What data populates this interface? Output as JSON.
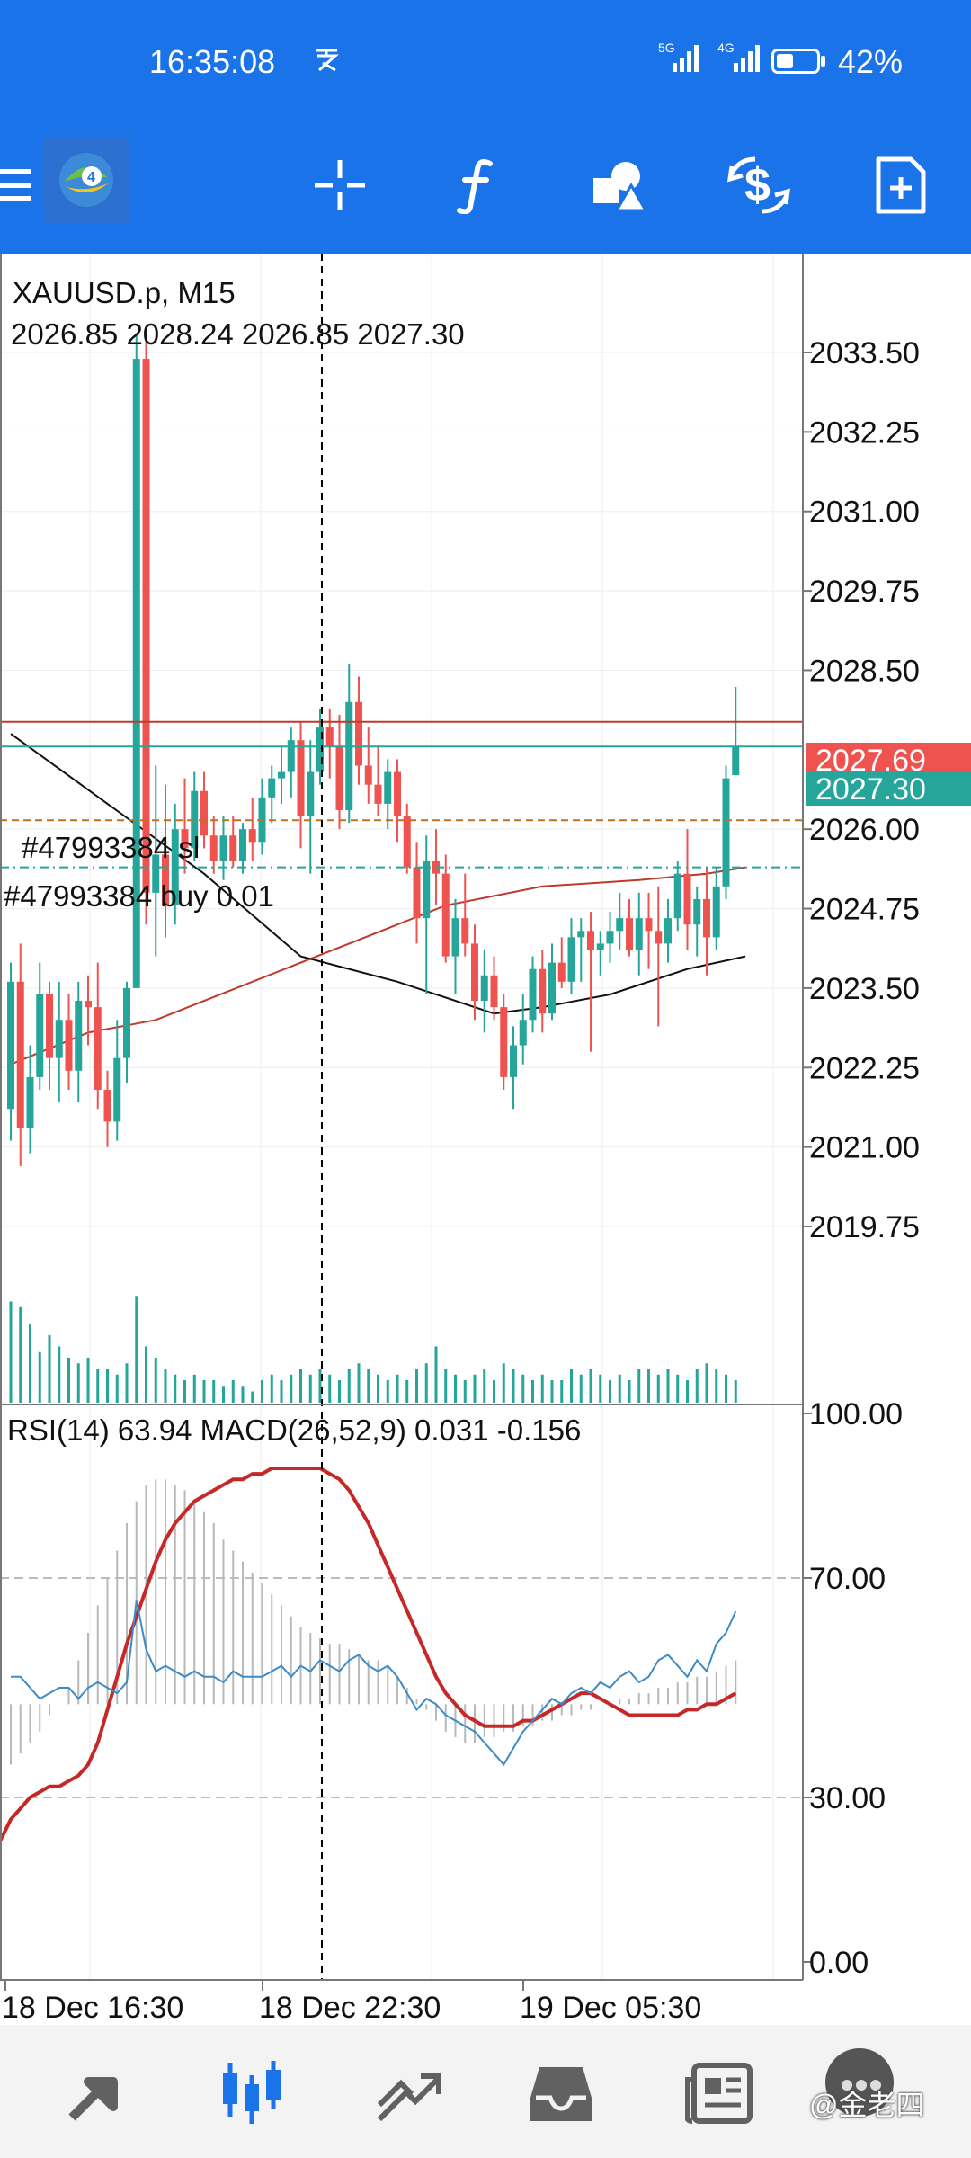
{
  "status_bar": {
    "time": "16:35:08",
    "signal_1": "5G",
    "signal_2": "4G",
    "battery_percent": "42%",
    "battery_level": 0.42
  },
  "toolbar": {
    "icons": [
      "menu-icon",
      "app-logo-icon",
      "crosshair-icon",
      "function-icon",
      "objects-icon",
      "trade-icon",
      "new-order-icon"
    ]
  },
  "chart": {
    "symbol_label": "XAUUSD.p, M15",
    "ohlc_label": "2026.85 2028.24 2026.85 2027.30",
    "y_ticks": [
      "2033.50",
      "2032.25",
      "2031.00",
      "2029.75",
      "2028.50",
      "2026.00",
      "2024.75",
      "2023.50",
      "2022.25",
      "2021.00",
      "2019.75"
    ],
    "ask_label": "2027.69",
    "bid_label": "2027.30",
    "sl_line_label": "#47993384 sl",
    "buy_line_label": "#47993384 buy 0.01",
    "indicator_label": "RSI(14) 63.94 MACD(26,52,9) 0.031 -0.156",
    "indicator_ticks": [
      "100.00",
      "70.00",
      "30.00",
      "0.00"
    ],
    "x_ticks": [
      "18 Dec 16:30",
      "18 Dec 22:30",
      "19 Dec 05:30"
    ],
    "colors": {
      "bull": "#26a69a",
      "bear": "#ef5350",
      "ask": "#ef5350",
      "bid": "#26a69a",
      "macd_signal": "#c62828",
      "rsi": "#3a8bc8"
    }
  },
  "chart_data": {
    "type": "candlestick",
    "symbol": "XAUUSD.p",
    "timeframe": "M15",
    "ohlc": {
      "open": 2026.85,
      "high": 2028.24,
      "low": 2026.85,
      "close": 2027.3
    },
    "ask": 2027.69,
    "bid": 2027.3,
    "price_range": [
      2018.3,
      2034.9
    ],
    "candles": [
      {
        "o": 2021.6,
        "h": 2023.9,
        "l": 2021.1,
        "c": 2023.6
      },
      {
        "o": 2023.6,
        "h": 2024.2,
        "l": 2020.7,
        "c": 2021.3
      },
      {
        "o": 2021.3,
        "h": 2022.6,
        "l": 2020.9,
        "c": 2022.1
      },
      {
        "o": 2022.1,
        "h": 2023.9,
        "l": 2021.9,
        "c": 2023.4
      },
      {
        "o": 2023.4,
        "h": 2023.6,
        "l": 2021.9,
        "c": 2022.4
      },
      {
        "o": 2022.4,
        "h": 2023.6,
        "l": 2021.7,
        "c": 2023.0
      },
      {
        "o": 2023.0,
        "h": 2023.4,
        "l": 2021.9,
        "c": 2022.2
      },
      {
        "o": 2022.2,
        "h": 2023.6,
        "l": 2021.7,
        "c": 2023.3
      },
      {
        "o": 2023.3,
        "h": 2023.7,
        "l": 2022.6,
        "c": 2023.2
      },
      {
        "o": 2023.2,
        "h": 2023.9,
        "l": 2021.6,
        "c": 2021.9
      },
      {
        "o": 2021.9,
        "h": 2022.2,
        "l": 2021.0,
        "c": 2021.4
      },
      {
        "o": 2021.4,
        "h": 2023.0,
        "l": 2021.1,
        "c": 2022.4
      },
      {
        "o": 2022.4,
        "h": 2023.6,
        "l": 2022.0,
        "c": 2023.5
      },
      {
        "o": 2023.5,
        "h": 2033.8,
        "l": 2023.5,
        "c": 2033.4
      },
      {
        "o": 2033.4,
        "h": 2033.8,
        "l": 2024.5,
        "c": 2025.0
      },
      {
        "o": 2025.0,
        "h": 2027.0,
        "l": 2024.0,
        "c": 2025.6
      },
      {
        "o": 2025.6,
        "h": 2026.7,
        "l": 2024.3,
        "c": 2024.8
      },
      {
        "o": 2024.8,
        "h": 2026.4,
        "l": 2024.5,
        "c": 2026.0
      },
      {
        "o": 2026.0,
        "h": 2026.8,
        "l": 2025.3,
        "c": 2025.7
      },
      {
        "o": 2025.7,
        "h": 2026.9,
        "l": 2025.5,
        "c": 2026.6
      },
      {
        "o": 2026.6,
        "h": 2026.9,
        "l": 2025.7,
        "c": 2025.9
      },
      {
        "o": 2025.9,
        "h": 2026.2,
        "l": 2025.3,
        "c": 2025.5
      },
      {
        "o": 2025.5,
        "h": 2026.2,
        "l": 2025.2,
        "c": 2025.9
      },
      {
        "o": 2025.9,
        "h": 2026.2,
        "l": 2025.4,
        "c": 2025.5
      },
      {
        "o": 2025.5,
        "h": 2026.1,
        "l": 2025.3,
        "c": 2026.0
      },
      {
        "o": 2026.0,
        "h": 2026.5,
        "l": 2025.5,
        "c": 2025.8
      },
      {
        "o": 2025.8,
        "h": 2026.8,
        "l": 2025.6,
        "c": 2026.5
      },
      {
        "o": 2026.5,
        "h": 2027.0,
        "l": 2026.1,
        "c": 2026.8
      },
      {
        "o": 2026.8,
        "h": 2027.3,
        "l": 2026.4,
        "c": 2026.9
      },
      {
        "o": 2026.9,
        "h": 2027.6,
        "l": 2026.5,
        "c": 2027.4
      },
      {
        "o": 2027.4,
        "h": 2027.7,
        "l": 2025.7,
        "c": 2026.2
      },
      {
        "o": 2026.2,
        "h": 2027.4,
        "l": 2025.3,
        "c": 2026.9
      },
      {
        "o": 2026.9,
        "h": 2027.9,
        "l": 2026.7,
        "c": 2027.6
      },
      {
        "o": 2027.6,
        "h": 2027.9,
        "l": 2026.8,
        "c": 2027.3
      },
      {
        "o": 2027.3,
        "h": 2027.8,
        "l": 2026.0,
        "c": 2026.3
      },
      {
        "o": 2026.3,
        "h": 2028.6,
        "l": 2026.1,
        "c": 2028.0
      },
      {
        "o": 2028.0,
        "h": 2028.4,
        "l": 2026.7,
        "c": 2027.0
      },
      {
        "o": 2027.0,
        "h": 2027.6,
        "l": 2026.4,
        "c": 2026.7
      },
      {
        "o": 2026.7,
        "h": 2027.3,
        "l": 2026.2,
        "c": 2026.4
      },
      {
        "o": 2026.4,
        "h": 2027.1,
        "l": 2026.0,
        "c": 2026.9
      },
      {
        "o": 2026.9,
        "h": 2027.1,
        "l": 2025.8,
        "c": 2026.2
      },
      {
        "o": 2026.2,
        "h": 2026.4,
        "l": 2025.3,
        "c": 2025.4
      },
      {
        "o": 2025.4,
        "h": 2025.8,
        "l": 2024.2,
        "c": 2024.6
      },
      {
        "o": 2024.6,
        "h": 2025.9,
        "l": 2023.4,
        "c": 2025.5
      },
      {
        "o": 2025.5,
        "h": 2026.0,
        "l": 2024.8,
        "c": 2025.3
      },
      {
        "o": 2025.3,
        "h": 2025.6,
        "l": 2023.9,
        "c": 2024.0
      },
      {
        "o": 2024.0,
        "h": 2024.9,
        "l": 2023.4,
        "c": 2024.6
      },
      {
        "o": 2024.6,
        "h": 2025.3,
        "l": 2024.0,
        "c": 2024.2
      },
      {
        "o": 2024.2,
        "h": 2024.5,
        "l": 2023.0,
        "c": 2023.3
      },
      {
        "o": 2023.3,
        "h": 2024.1,
        "l": 2022.8,
        "c": 2023.7
      },
      {
        "o": 2023.7,
        "h": 2024.0,
        "l": 2023.0,
        "c": 2023.2
      },
      {
        "o": 2023.2,
        "h": 2023.4,
        "l": 2021.9,
        "c": 2022.1
      },
      {
        "o": 2022.1,
        "h": 2022.9,
        "l": 2021.6,
        "c": 2022.6
      },
      {
        "o": 2022.6,
        "h": 2023.4,
        "l": 2022.3,
        "c": 2023.0
      },
      {
        "o": 2023.0,
        "h": 2024.0,
        "l": 2022.8,
        "c": 2023.8
      },
      {
        "o": 2023.8,
        "h": 2024.1,
        "l": 2022.8,
        "c": 2023.1
      },
      {
        "o": 2023.1,
        "h": 2024.2,
        "l": 2023.0,
        "c": 2023.9
      },
      {
        "o": 2023.9,
        "h": 2024.3,
        "l": 2023.5,
        "c": 2023.6
      },
      {
        "o": 2023.6,
        "h": 2024.6,
        "l": 2023.4,
        "c": 2024.3
      },
      {
        "o": 2024.3,
        "h": 2024.6,
        "l": 2023.6,
        "c": 2024.4
      },
      {
        "o": 2024.4,
        "h": 2024.7,
        "l": 2022.5,
        "c": 2024.1
      },
      {
        "o": 2024.1,
        "h": 2024.4,
        "l": 2023.7,
        "c": 2024.2
      },
      {
        "o": 2024.2,
        "h": 2024.7,
        "l": 2023.9,
        "c": 2024.4
      },
      {
        "o": 2024.4,
        "h": 2025.0,
        "l": 2024.1,
        "c": 2024.6
      },
      {
        "o": 2024.6,
        "h": 2024.9,
        "l": 2024.0,
        "c": 2024.1
      },
      {
        "o": 2024.1,
        "h": 2025.0,
        "l": 2023.7,
        "c": 2024.6
      },
      {
        "o": 2024.6,
        "h": 2025.0,
        "l": 2023.8,
        "c": 2024.4
      },
      {
        "o": 2024.4,
        "h": 2025.1,
        "l": 2022.9,
        "c": 2024.2
      },
      {
        "o": 2024.2,
        "h": 2024.9,
        "l": 2023.9,
        "c": 2024.6
      },
      {
        "o": 2024.6,
        "h": 2025.5,
        "l": 2024.4,
        "c": 2025.3
      },
      {
        "o": 2025.3,
        "h": 2026.0,
        "l": 2024.1,
        "c": 2024.5
      },
      {
        "o": 2024.5,
        "h": 2025.1,
        "l": 2024.0,
        "c": 2024.9
      },
      {
        "o": 2024.9,
        "h": 2025.4,
        "l": 2023.7,
        "c": 2024.3
      },
      {
        "o": 2024.3,
        "h": 2025.4,
        "l": 2024.1,
        "c": 2025.1
      },
      {
        "o": 2025.1,
        "h": 2027.0,
        "l": 2024.9,
        "c": 2026.8
      },
      {
        "o": 2026.85,
        "h": 2028.24,
        "l": 2026.85,
        "c": 2027.3
      }
    ],
    "volume_relative": [
      0.9,
      0.85,
      0.7,
      0.45,
      0.6,
      0.5,
      0.4,
      0.35,
      0.4,
      0.3,
      0.3,
      0.25,
      0.35,
      0.95,
      0.5,
      0.4,
      0.3,
      0.25,
      0.2,
      0.25,
      0.2,
      0.2,
      0.15,
      0.2,
      0.15,
      0.1,
      0.2,
      0.25,
      0.2,
      0.25,
      0.3,
      0.25,
      0.3,
      0.25,
      0.2,
      0.3,
      0.35,
      0.3,
      0.25,
      0.2,
      0.25,
      0.2,
      0.3,
      0.35,
      0.5,
      0.3,
      0.25,
      0.2,
      0.25,
      0.3,
      0.2,
      0.35,
      0.3,
      0.25,
      0.2,
      0.25,
      0.2,
      0.2,
      0.3,
      0.25,
      0.3,
      0.25,
      0.2,
      0.25,
      0.2,
      0.3,
      0.3,
      0.25,
      0.3,
      0.25,
      0.2,
      0.3,
      0.35,
      0.3,
      0.25,
      0.2
    ],
    "sl_level": 2026.14,
    "buy_level": 2025.4,
    "ma_fast": [
      [
        0,
        2022.3
      ],
      [
        8,
        2022.8
      ],
      [
        15,
        2023.0
      ],
      [
        25,
        2023.6
      ],
      [
        35,
        2024.2
      ],
      [
        45,
        2024.8
      ],
      [
        55,
        2025.1
      ],
      [
        65,
        2025.2
      ],
      [
        72,
        2025.3
      ],
      [
        76,
        2025.4
      ]
    ],
    "ma_slow": [
      [
        0,
        2027.5
      ],
      [
        10,
        2026.4
      ],
      [
        20,
        2025.3
      ],
      [
        30,
        2024.0
      ],
      [
        40,
        2023.6
      ],
      [
        50,
        2023.1
      ],
      [
        55,
        2023.2
      ],
      [
        62,
        2023.4
      ],
      [
        70,
        2023.8
      ],
      [
        76,
        2024.0
      ]
    ],
    "rsi": [
      52,
      52,
      50,
      48,
      49,
      50,
      50,
      48,
      50,
      51,
      50,
      49,
      51,
      66,
      57,
      53,
      54,
      53,
      52,
      53,
      52,
      52,
      51,
      53,
      52,
      52,
      52,
      53,
      54,
      52,
      54,
      53,
      55,
      54,
      53,
      55,
      56,
      54,
      53,
      54,
      52,
      49,
      46,
      48,
      47,
      45,
      44,
      43,
      42,
      40,
      38,
      36,
      39,
      42,
      44,
      46,
      48,
      47,
      49,
      50,
      49,
      51,
      50,
      52,
      53,
      51,
      52,
      55,
      56,
      54,
      52,
      55,
      53,
      58,
      60,
      63.94
    ],
    "macd_histogram": [
      36,
      38,
      40,
      42,
      45,
      47,
      50,
      55,
      60,
      65,
      70,
      75,
      80,
      84,
      87,
      88,
      88,
      87,
      86,
      84,
      82,
      80,
      77,
      75,
      73,
      71,
      69,
      67,
      65,
      63,
      61,
      60,
      59,
      58,
      58,
      57,
      56,
      55,
      55,
      54,
      52,
      50,
      48,
      46,
      44,
      42,
      41,
      40,
      40,
      41,
      41,
      42,
      42,
      43,
      43,
      44,
      44,
      45,
      45,
      46,
      46,
      47,
      47,
      48,
      48,
      49,
      49,
      50,
      50,
      51,
      51,
      52,
      52,
      53,
      54,
      55
    ],
    "macd_signal": [
      26,
      28,
      30,
      31,
      32,
      32,
      33,
      34,
      36,
      40,
      46,
      52,
      58,
      63,
      68,
      73,
      77,
      80,
      82,
      84,
      85,
      86,
      87,
      88,
      88,
      89,
      89,
      90,
      90,
      90,
      90,
      90,
      90,
      89,
      88,
      86,
      83,
      80,
      76,
      72,
      68,
      64,
      60,
      56,
      52,
      49,
      47,
      45,
      44,
      43,
      43,
      43,
      43,
      44,
      44,
      45,
      46,
      47,
      48,
      49,
      49,
      48,
      47,
      46,
      45,
      45,
      45,
      45,
      45,
      45,
      46,
      46,
      47,
      47,
      48,
      49
    ],
    "indicator_levels": [
      100,
      70,
      30,
      0
    ],
    "x_tick_labels": [
      "18 Dec 16:30",
      "18 Dec 22:30",
      "19 Dec 05:30"
    ]
  },
  "bottom_nav": {
    "items": [
      {
        "name": "quotes-tab",
        "icon": "quotes-arrows-icon"
      },
      {
        "name": "chart-tab",
        "icon": "candlestick-icon",
        "active": true
      },
      {
        "name": "trade-tab",
        "icon": "trend-icon"
      },
      {
        "name": "history-tab",
        "icon": "inbox-icon"
      },
      {
        "name": "news-tab",
        "icon": "news-icon"
      },
      {
        "name": "messages-tab",
        "icon": "chat-avatar-icon"
      }
    ]
  },
  "watermark": "@金老四"
}
